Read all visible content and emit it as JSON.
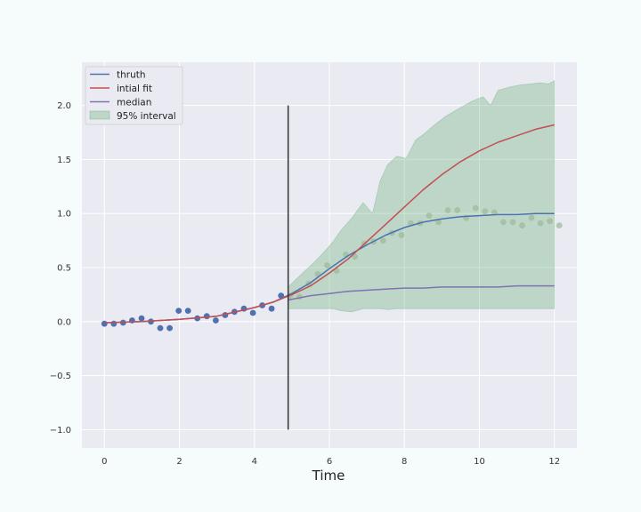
{
  "chart_data": {
    "type": "line",
    "xlabel": "Time",
    "ylabel": "",
    "xlim": [
      -0.6,
      12.6
    ],
    "ylim": [
      -1.17,
      2.4
    ],
    "xticks": [
      0,
      2,
      4,
      6,
      8,
      10,
      12
    ],
    "yticks": [
      -1.0,
      -0.5,
      0.0,
      0.5,
      1.0,
      1.5,
      2.0
    ],
    "xtick_labels": [
      "0",
      "2",
      "4",
      "6",
      "8",
      "10",
      "12"
    ],
    "ytick_labels": [
      "−1.0",
      "−0.5",
      "0.0",
      "0.5",
      "1.0",
      "1.5",
      "2.0"
    ],
    "grid": true,
    "legend_position": "top-left",
    "vline": {
      "x": 4.9,
      "y_range": [
        -1.0,
        2.0
      ],
      "color": "#333333"
    },
    "series": [
      {
        "name": "thruth",
        "color": "#4c72b0",
        "x": [
          0,
          1,
          2,
          3,
          4,
          4.5,
          5,
          5.5,
          6,
          6.5,
          7,
          7.5,
          8,
          8.5,
          9,
          9.5,
          10,
          10.5,
          11,
          11.5,
          12
        ],
        "y": [
          -0.01,
          0.0,
          0.02,
          0.05,
          0.13,
          0.18,
          0.26,
          0.36,
          0.49,
          0.61,
          0.71,
          0.8,
          0.87,
          0.92,
          0.95,
          0.97,
          0.98,
          0.99,
          0.99,
          1.0,
          1.0
        ]
      },
      {
        "name": "intial fit",
        "color": "#c44e52",
        "x": [
          0,
          1,
          2,
          3,
          4,
          4.5,
          5,
          5.5,
          6,
          6.5,
          7,
          7.5,
          8,
          8.5,
          9,
          9.5,
          10,
          10.5,
          11,
          11.5,
          12
        ],
        "y": [
          -0.01,
          0.0,
          0.02,
          0.05,
          0.13,
          0.18,
          0.25,
          0.33,
          0.45,
          0.58,
          0.74,
          0.9,
          1.06,
          1.22,
          1.36,
          1.48,
          1.58,
          1.66,
          1.72,
          1.78,
          1.82
        ]
      },
      {
        "name": "median",
        "color": "#8172b2",
        "x": [
          4.9,
          5.5,
          6,
          6.5,
          7,
          7.5,
          8,
          8.5,
          9,
          9.5,
          10,
          10.5,
          11,
          11.5,
          12
        ],
        "y": [
          0.2,
          0.24,
          0.26,
          0.28,
          0.29,
          0.3,
          0.31,
          0.31,
          0.32,
          0.32,
          0.32,
          0.32,
          0.33,
          0.33,
          0.33
        ]
      }
    ],
    "interval": {
      "name": "95% interval",
      "color": "#55a868",
      "x": [
        4.9,
        5.2,
        5.6,
        5.9,
        6.1,
        6.3,
        6.6,
        6.9,
        7.15,
        7.35,
        7.55,
        7.8,
        8.05,
        8.3,
        8.5,
        8.8,
        9.1,
        9.4,
        9.8,
        10.1,
        10.3,
        10.5,
        10.8,
        11.1,
        11.4,
        11.6,
        11.85,
        12.0
      ],
      "upper": [
        0.32,
        0.42,
        0.55,
        0.66,
        0.74,
        0.84,
        0.96,
        1.1,
        1.0,
        1.3,
        1.45,
        1.53,
        1.51,
        1.68,
        1.73,
        1.82,
        1.9,
        1.96,
        2.04,
        2.08,
        2.0,
        2.14,
        2.17,
        2.19,
        2.2,
        2.21,
        2.2,
        2.23
      ],
      "lower": [
        0.12,
        0.12,
        0.12,
        0.12,
        0.12,
        0.1,
        0.09,
        0.12,
        0.12,
        0.12,
        0.11,
        0.12,
        0.12,
        0.12,
        0.12,
        0.12,
        0.12,
        0.12,
        0.12,
        0.12,
        0.12,
        0.12,
        0.12,
        0.12,
        0.12,
        0.12,
        0.12,
        0.12
      ]
    },
    "observations_color": "#4c72b0",
    "observations": {
      "x": [
        0.0,
        0.25,
        0.5,
        0.74,
        0.99,
        1.24,
        1.49,
        1.74,
        1.98,
        2.23,
        2.48,
        2.73,
        2.97,
        3.22,
        3.47,
        3.72,
        3.96,
        4.21,
        4.46,
        4.71,
        4.95,
        5.2,
        5.45,
        5.69,
        5.94,
        6.19,
        6.44,
        6.68,
        6.93,
        7.18,
        7.43,
        7.67,
        7.92,
        8.17,
        8.42,
        8.66,
        8.91,
        9.16,
        9.41,
        9.65,
        9.9,
        10.15,
        10.4,
        10.64,
        10.89,
        11.14,
        11.39,
        11.63,
        11.88,
        12.13
      ],
      "y": [
        -0.02,
        -0.02,
        -0.01,
        0.01,
        0.03,
        0.0,
        -0.06,
        -0.06,
        0.1,
        0.1,
        0.03,
        0.05,
        0.01,
        0.06,
        0.09,
        0.12,
        0.08,
        0.15,
        0.12,
        0.24,
        0.24,
        0.23,
        0.35,
        0.44,
        0.52,
        0.47,
        0.62,
        0.6,
        0.72,
        0.74,
        0.75,
        0.82,
        0.8,
        0.91,
        0.91,
        0.98,
        0.92,
        1.03,
        1.03,
        0.96,
        1.05,
        1.02,
        1.01,
        0.92,
        0.92,
        0.89,
        0.96,
        0.91,
        0.93,
        0.89
      ]
    }
  }
}
